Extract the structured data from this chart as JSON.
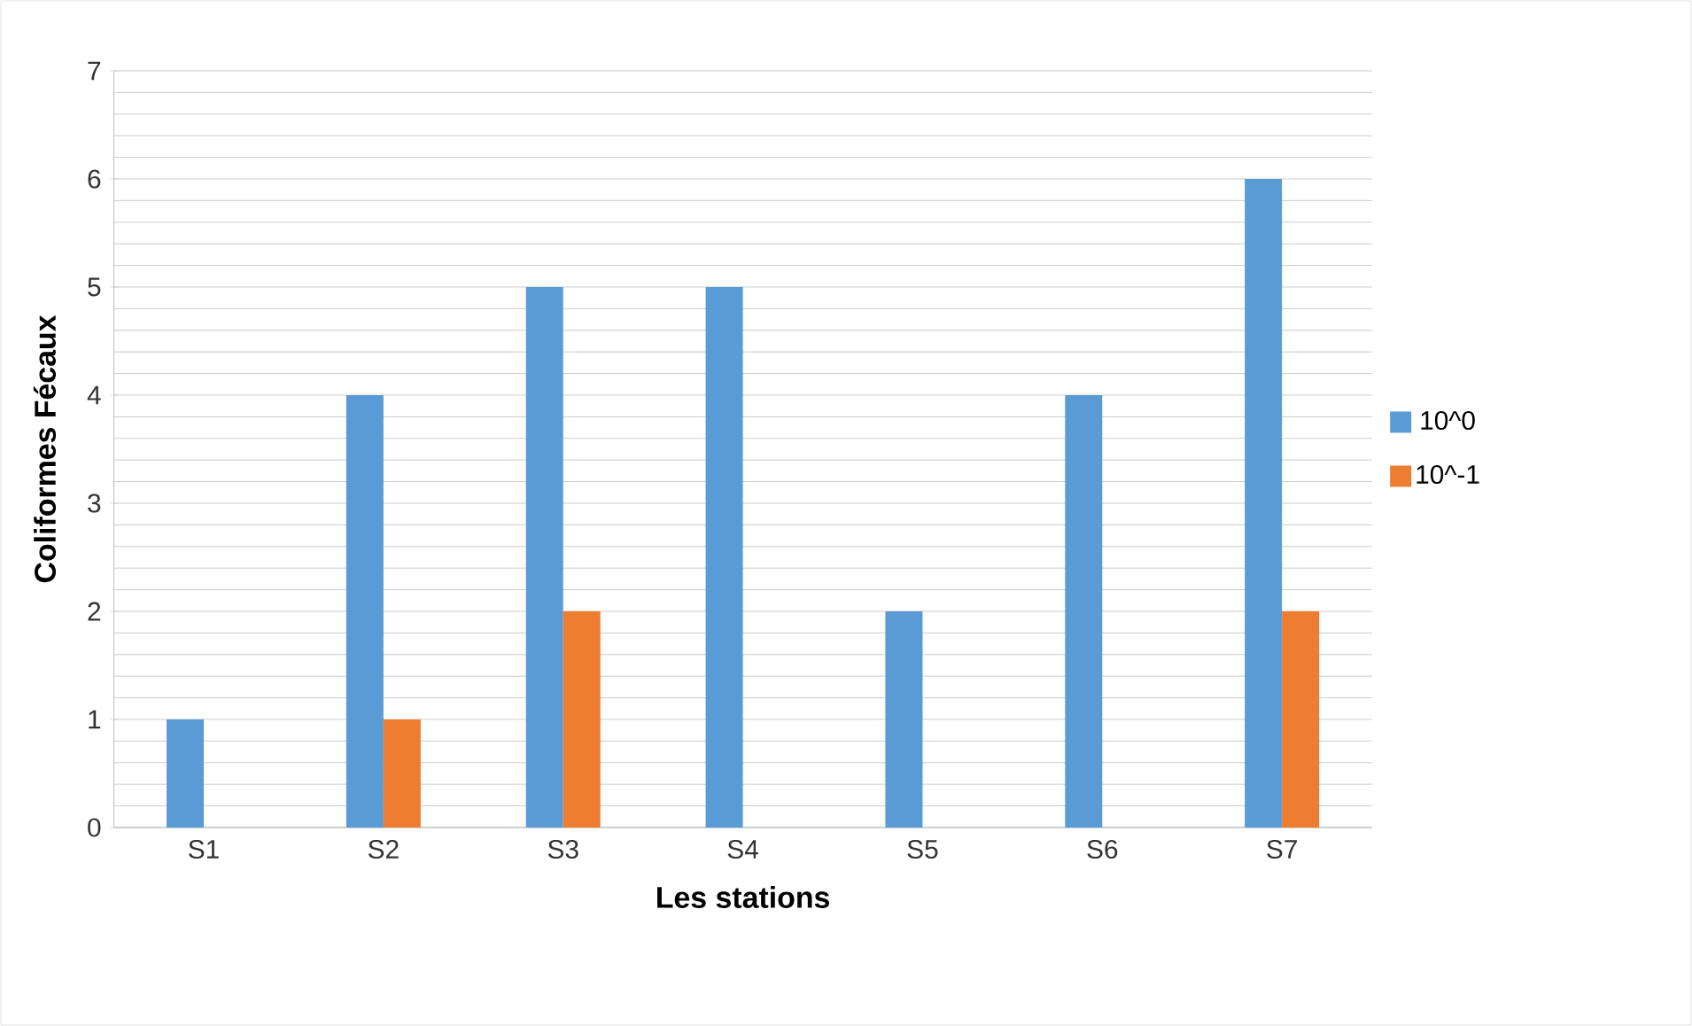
{
  "chart_data": {
    "type": "bar",
    "xlabel": "Les stations",
    "ylabel": "Coliformes Fécaux",
    "categories": [
      "S1",
      "S2",
      "S3",
      "S4",
      "S5",
      "S6",
      "S7"
    ],
    "series": [
      {
        "name": "10^0",
        "color": "#5b9bd5",
        "values": [
          1,
          4,
          5,
          5,
          2,
          4,
          6
        ]
      },
      {
        "name": "10^-1",
        "color": "#ed7d31",
        "values": [
          0,
          1,
          2,
          0,
          0,
          0,
          2
        ]
      }
    ],
    "ylim": [
      0,
      7
    ],
    "yticks": [
      0,
      1,
      2,
      3,
      4,
      5,
      6,
      7
    ],
    "grid": true,
    "legend": "right"
  }
}
